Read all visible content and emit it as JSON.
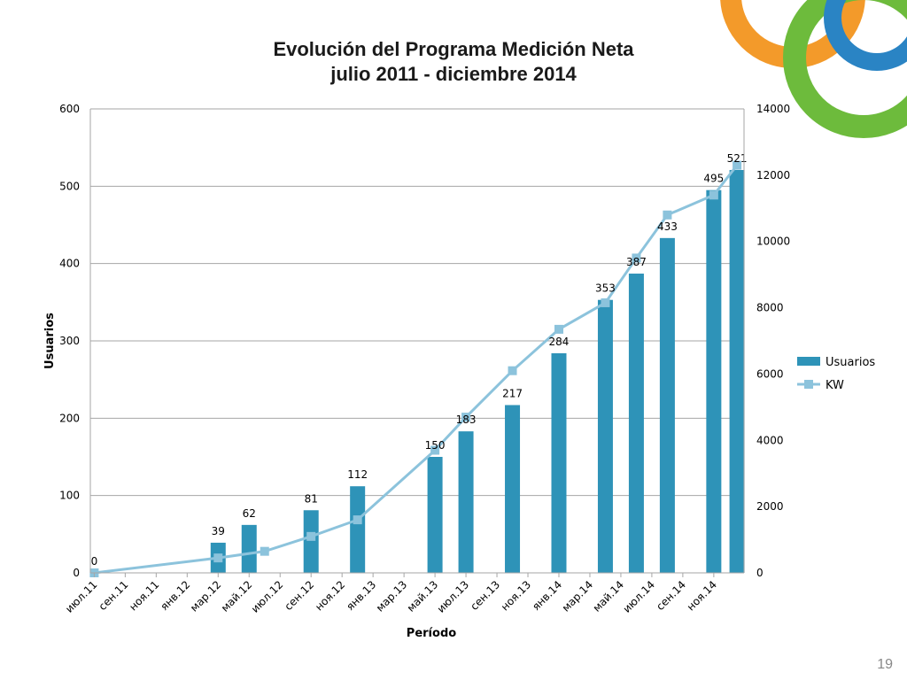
{
  "page": {
    "number": "19"
  },
  "colors": {
    "bar": "#2e93b8",
    "line": "#8cc3dc",
    "ring_orange": "#f39a2a",
    "ring_blue": "#2a84c4",
    "ring_green": "#6dbb3c"
  },
  "chart_data": {
    "type": "bar",
    "title_lines": [
      "Evolución del Programa Medición Neta",
      "julio 2011 - diciembre 2014"
    ],
    "xlabel": "Período",
    "ylabel": "Usuarios",
    "ylim": [
      0,
      600
    ],
    "y2lim": [
      0,
      14000
    ],
    "yticks": [
      0,
      100,
      200,
      300,
      400,
      500,
      600
    ],
    "y2ticks": [
      0,
      2000,
      4000,
      6000,
      8000,
      10000,
      12000,
      14000
    ],
    "x_tick_labels": [
      "июл.11",
      "сен.11",
      "ноя.11",
      "янв.12",
      "мар.12",
      "май.12",
      "июл.12",
      "сен.12",
      "ноя.12",
      "янв.13",
      "мар.13",
      "май.13",
      "июл.13",
      "сен.13",
      "ноя.13",
      "янв.14",
      "мар.14",
      "май.14",
      "июл.14",
      "сен.14",
      "ноя.14"
    ],
    "grid": true,
    "legend_position": "right",
    "series": [
      {
        "name": "Usuarios",
        "type": "bar",
        "axis": "left",
        "points": [
          {
            "x": 0,
            "y": 0,
            "label": "0"
          },
          {
            "x": 8,
            "y": 39,
            "label": "39"
          },
          {
            "x": 10,
            "y": 62,
            "label": "62"
          },
          {
            "x": 14,
            "y": 81,
            "label": "81"
          },
          {
            "x": 17,
            "y": 112,
            "label": "112"
          },
          {
            "x": 22,
            "y": 150,
            "label": "150"
          },
          {
            "x": 24,
            "y": 183,
            "label": "183"
          },
          {
            "x": 27,
            "y": 217,
            "label": "217"
          },
          {
            "x": 30,
            "y": 284,
            "label": "284"
          },
          {
            "x": 33,
            "y": 353,
            "label": "353"
          },
          {
            "x": 35,
            "y": 387,
            "label": "387"
          },
          {
            "x": 37,
            "y": 433,
            "label": "433"
          },
          {
            "x": 40,
            "y": 495,
            "label": "495"
          },
          {
            "x": 41.5,
            "y": 521,
            "label": "521"
          }
        ]
      },
      {
        "name": "KW",
        "type": "line",
        "axis": "right",
        "points": [
          {
            "x": 0,
            "y": 0
          },
          {
            "x": 8,
            "y": 450
          },
          {
            "x": 11,
            "y": 650
          },
          {
            "x": 14,
            "y": 1100
          },
          {
            "x": 17,
            "y": 1600
          },
          {
            "x": 22,
            "y": 3700
          },
          {
            "x": 24,
            "y": 4700
          },
          {
            "x": 27,
            "y": 6100
          },
          {
            "x": 30,
            "y": 7350
          },
          {
            "x": 33,
            "y": 8150
          },
          {
            "x": 35,
            "y": 9500
          },
          {
            "x": 37,
            "y": 10800
          },
          {
            "x": 40,
            "y": 11400
          },
          {
            "x": 41.5,
            "y": 12300
          }
        ]
      }
    ]
  }
}
